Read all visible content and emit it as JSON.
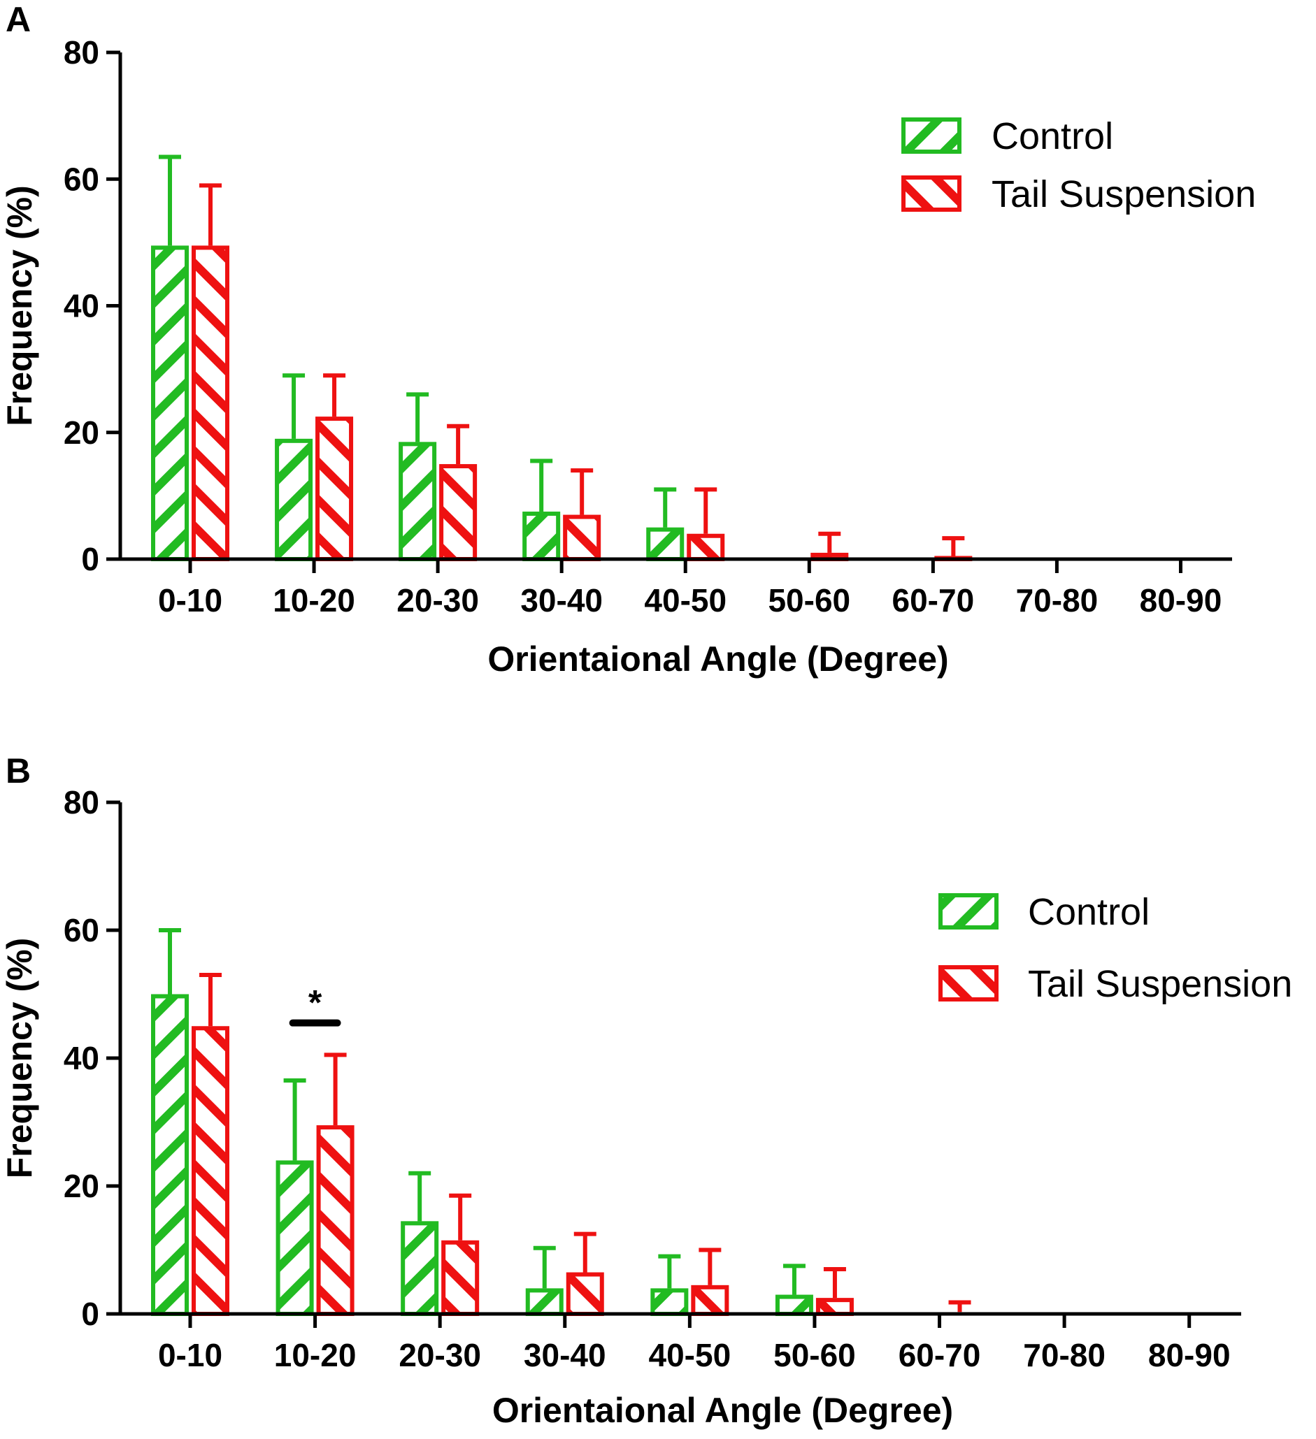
{
  "colors": {
    "control": "#22bb22",
    "tail": "#ee1111",
    "axis": "#000000"
  },
  "chart_data": [
    {
      "type": "bar",
      "panel": "A",
      "xlabel": "Orientaional Angle (Degree)",
      "ylabel": "Frequency (%)",
      "ylim": [
        0,
        80
      ],
      "yticks": [
        0,
        20,
        40,
        60,
        80
      ],
      "categories": [
        "0-10",
        "10-20",
        "20-30",
        "30-40",
        "40-50",
        "50-60",
        "60-70",
        "70-80",
        "80-90"
      ],
      "series": [
        {
          "name": "Control",
          "values": [
            49.5,
            19.0,
            18.5,
            7.5,
            5.0,
            0,
            0,
            0,
            0
          ],
          "errors": [
            14.0,
            10.0,
            7.5,
            8.0,
            6.0,
            0,
            0,
            0,
            0
          ]
        },
        {
          "name": "Tail Suspension",
          "values": [
            49.5,
            22.5,
            15.0,
            7.0,
            4.0,
            1.0,
            0.5,
            0,
            0
          ],
          "errors": [
            9.5,
            6.5,
            6.0,
            7.0,
            7.0,
            3.0,
            2.8,
            0,
            0
          ]
        }
      ],
      "legend": [
        "Control",
        "Tail Suspension"
      ],
      "legend_position": "top-right",
      "annotations": []
    },
    {
      "type": "bar",
      "panel": "B",
      "xlabel": "Orientaional Angle (Degree)",
      "ylabel": "Frequency (%)",
      "ylim": [
        0,
        80
      ],
      "yticks": [
        0,
        20,
        40,
        60,
        80
      ],
      "categories": [
        "0-10",
        "10-20",
        "20-30",
        "30-40",
        "40-50",
        "50-60",
        "60-70",
        "70-80",
        "80-90"
      ],
      "series": [
        {
          "name": "Control",
          "values": [
            50.0,
            24.0,
            14.5,
            4.0,
            4.0,
            3.0,
            0,
            0,
            0
          ],
          "errors": [
            10.0,
            12.5,
            7.5,
            6.3,
            5.0,
            4.5,
            0,
            0,
            0
          ]
        },
        {
          "name": "Tail Suspension",
          "values": [
            45.0,
            29.5,
            11.5,
            6.5,
            4.5,
            2.5,
            0.3,
            0,
            0
          ],
          "errors": [
            8.0,
            11.0,
            7.0,
            6.0,
            5.5,
            4.5,
            1.5,
            0,
            0
          ]
        }
      ],
      "legend": [
        "Control",
        "Tail Suspension"
      ],
      "legend_position": "top-right",
      "annotations": [
        {
          "text": "*",
          "category": "10-20",
          "y": 45.5
        }
      ]
    }
  ]
}
